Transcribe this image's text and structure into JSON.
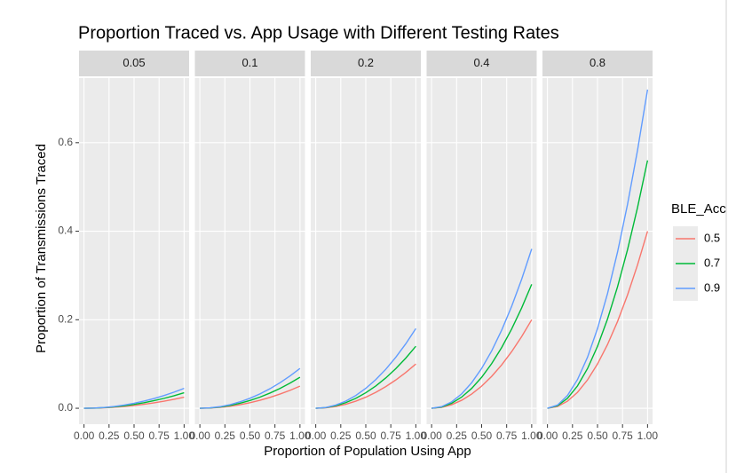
{
  "chart_data": {
    "type": "line",
    "title": "Proportion Traced vs. App Usage with Different Testing Rates",
    "x_label": "Proportion of Population Using App",
    "y_label": "Proportion of Transmissions Traced",
    "legend_title": "BLE_Acc",
    "xlim": [
      -0.05,
      1.05
    ],
    "xticks": [
      {
        "value": 0,
        "label": "0.00"
      },
      {
        "value": 0.25,
        "label": "0.25"
      },
      {
        "value": 0.5,
        "label": "0.50"
      },
      {
        "value": 0.75,
        "label": "0.75"
      },
      {
        "value": 1,
        "label": "1.00"
      }
    ],
    "ylim": [
      -0.036,
      0.746
    ],
    "yticks": [
      {
        "value": 0,
        "label": "0.0"
      },
      0.2,
      0.4,
      0.6
    ],
    "grid": true,
    "x": [
      0,
      0.1,
      0.2,
      0.3,
      0.4,
      0.5,
      0.6,
      0.7,
      0.8,
      0.9,
      1
    ],
    "series": [
      {
        "name": "0.5",
        "color": "#F8766D"
      },
      {
        "name": "0.7",
        "color": "#00BA38"
      },
      {
        "name": "0.9",
        "color": "#619CFF"
      }
    ],
    "panels": [
      {
        "label": "0.05",
        "values": [
          [
            0,
            0.00025,
            0.001,
            0.00225,
            0.004,
            0.00625,
            0.009,
            0.01225,
            0.016,
            0.02025,
            0.025
          ],
          [
            0,
            0.00035,
            0.0014,
            0.00315,
            0.0056,
            0.00875,
            0.0126,
            0.01715,
            0.0224,
            0.02835,
            0.035
          ],
          [
            0,
            0.00045,
            0.0018,
            0.00405,
            0.0072,
            0.01125,
            0.0162,
            0.02205,
            0.0288,
            0.03645,
            0.045
          ]
        ]
      },
      {
        "label": "0.1",
        "values": [
          [
            0,
            0.0005,
            0.002,
            0.0045,
            0.008,
            0.0125,
            0.018,
            0.0245,
            0.032,
            0.0405,
            0.05
          ],
          [
            0,
            0.0007,
            0.0028,
            0.0063,
            0.0112,
            0.0175,
            0.0252,
            0.0343,
            0.0448,
            0.0567,
            0.07
          ],
          [
            0,
            0.0009,
            0.0036,
            0.0081,
            0.0144,
            0.0225,
            0.0324,
            0.0441,
            0.0576,
            0.0729,
            0.09
          ]
        ]
      },
      {
        "label": "0.2",
        "values": [
          [
            0,
            0.001,
            0.004,
            0.009,
            0.016,
            0.025,
            0.036,
            0.049,
            0.064,
            0.081,
            0.1
          ],
          [
            0,
            0.0014,
            0.0056,
            0.0126,
            0.0224,
            0.035,
            0.0504,
            0.0686,
            0.0896,
            0.1134,
            0.14
          ],
          [
            0,
            0.0018,
            0.0072,
            0.0162,
            0.0288,
            0.045,
            0.0648,
            0.0882,
            0.1152,
            0.1458,
            0.18
          ]
        ]
      },
      {
        "label": "0.4",
        "values": [
          [
            0,
            0.002,
            0.008,
            0.018,
            0.032,
            0.05,
            0.072,
            0.098,
            0.128,
            0.162,
            0.2
          ],
          [
            0,
            0.0028,
            0.0112,
            0.0252,
            0.0448,
            0.07,
            0.1008,
            0.1372,
            0.1792,
            0.2268,
            0.28
          ],
          [
            0,
            0.0036,
            0.0144,
            0.0324,
            0.0576,
            0.09,
            0.1296,
            0.1764,
            0.2304,
            0.2916,
            0.36
          ]
        ]
      },
      {
        "label": "0.8",
        "values": [
          [
            0,
            0.004,
            0.016,
            0.036,
            0.064,
            0.1,
            0.144,
            0.196,
            0.256,
            0.324,
            0.4
          ],
          [
            0,
            0.0056,
            0.0224,
            0.0504,
            0.0896,
            0.14,
            0.2016,
            0.2744,
            0.3584,
            0.4536,
            0.56
          ],
          [
            0,
            0.0072,
            0.0288,
            0.0648,
            0.1152,
            0.18,
            0.2592,
            0.3528,
            0.4608,
            0.5832,
            0.72
          ]
        ]
      }
    ]
  }
}
